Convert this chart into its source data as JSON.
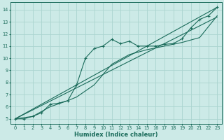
{
  "xlabel": "Humidex (Indice chaleur)",
  "bg_color": "#cceae7",
  "line_color": "#1a6b5a",
  "grid_color": "#aad4cf",
  "xlim": [
    -0.5,
    23.5
  ],
  "ylim": [
    4.6,
    14.6
  ],
  "xticks": [
    0,
    1,
    2,
    3,
    4,
    5,
    6,
    7,
    8,
    9,
    10,
    11,
    12,
    13,
    14,
    15,
    16,
    17,
    18,
    19,
    20,
    21,
    22,
    23
  ],
  "yticks": [
    5,
    6,
    7,
    8,
    9,
    10,
    11,
    12,
    13,
    14
  ],
  "main_x": [
    0,
    1,
    2,
    3,
    4,
    5,
    6,
    7,
    8,
    9,
    10,
    11,
    12,
    13,
    14,
    15,
    16,
    17,
    18,
    19,
    20,
    21,
    22,
    23
  ],
  "main_y": [
    5.0,
    5.0,
    5.2,
    5.5,
    6.2,
    6.3,
    6.5,
    7.8,
    10.0,
    10.8,
    11.0,
    11.55,
    11.2,
    11.4,
    11.0,
    11.0,
    11.0,
    11.15,
    11.2,
    11.6,
    12.5,
    13.2,
    13.5,
    14.2
  ],
  "line1_x": [
    0,
    23
  ],
  "line1_y": [
    5.0,
    13.4
  ],
  "line2_x": [
    0,
    23
  ],
  "line2_y": [
    5.0,
    14.2
  ],
  "line3_x": [
    0,
    2,
    4,
    6,
    7,
    9,
    11,
    13,
    15,
    17,
    19,
    21,
    23
  ],
  "line3_y": [
    5.0,
    5.2,
    6.0,
    6.5,
    6.8,
    7.8,
    9.5,
    10.3,
    10.7,
    11.0,
    11.3,
    11.7,
    13.5
  ]
}
